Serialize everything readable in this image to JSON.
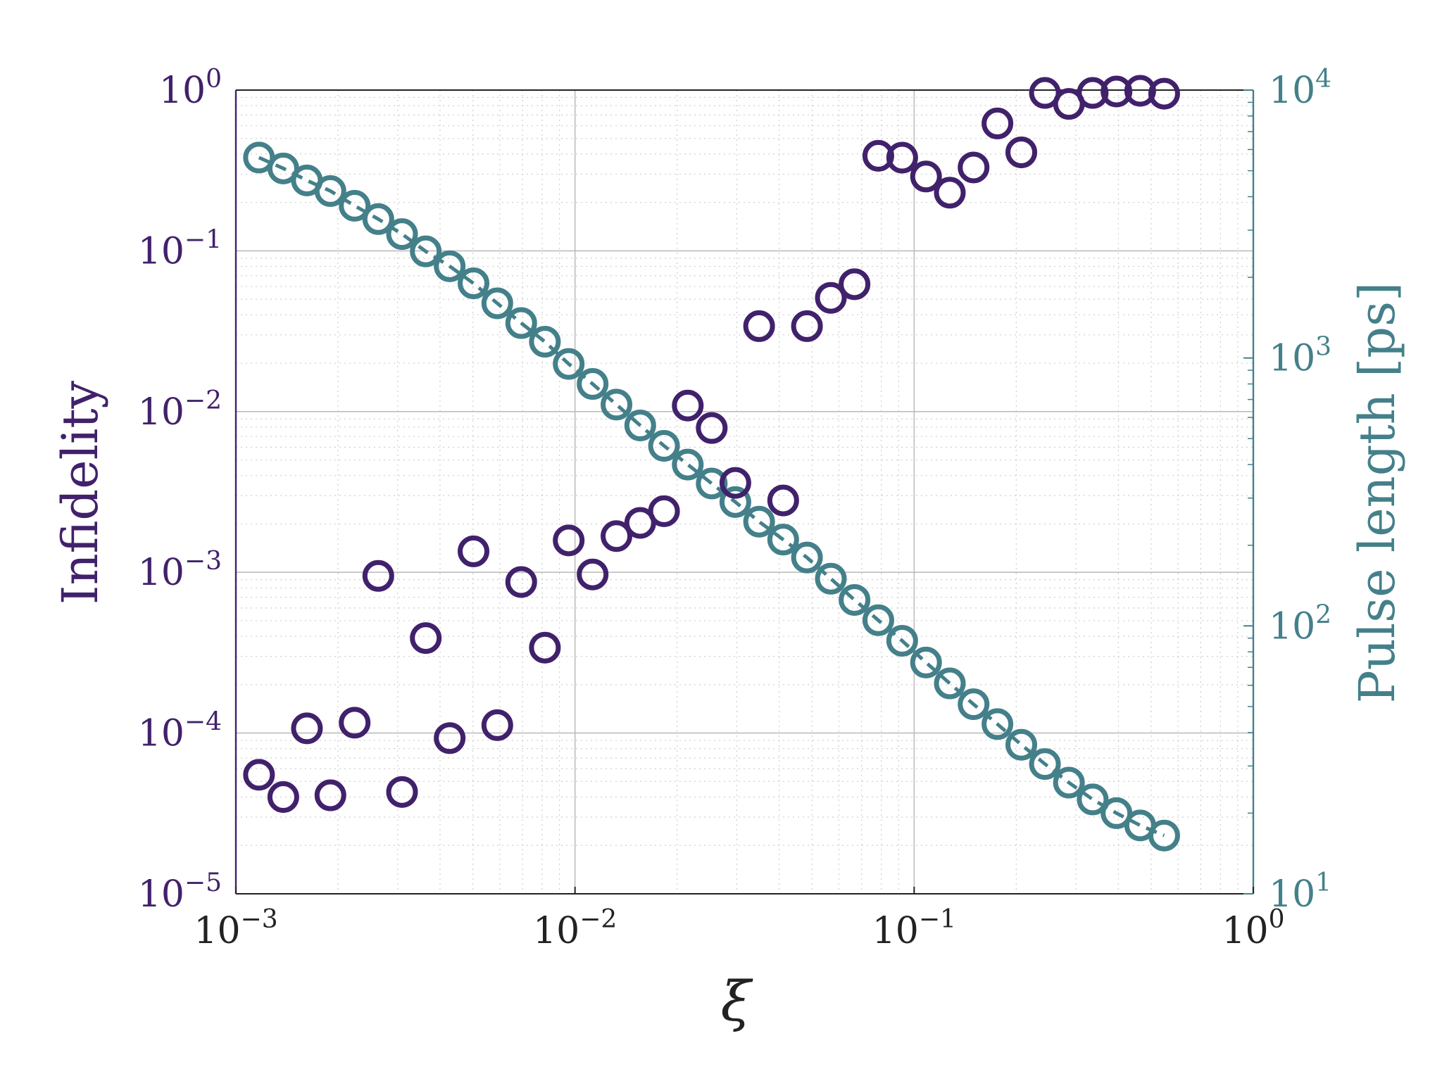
{
  "colors": {
    "left_series": "#41216b",
    "right_series": "#44808a",
    "grid": "#cfcfcf",
    "axis": "#222222"
  },
  "chart_data": {
    "type": "scatter",
    "title": "",
    "xlabel": "ξ",
    "ylabel_left": "Infidelity",
    "ylabel_right": "Pulse length [ps]",
    "xscale": "log",
    "yscale_left": "log",
    "yscale_right": "log",
    "xlim": [
      0.001,
      1
    ],
    "ylim_left": [
      1e-05,
      1
    ],
    "ylim_right": [
      10,
      10000
    ],
    "grid": true,
    "x_ticks": [
      {
        "value": 0.001,
        "base": "10",
        "exp": "−3"
      },
      {
        "value": 0.01,
        "base": "10",
        "exp": "−2"
      },
      {
        "value": 0.1,
        "base": "10",
        "exp": "−1"
      },
      {
        "value": 1,
        "base": "10",
        "exp": "0"
      }
    ],
    "y_left_ticks": [
      {
        "value": 1,
        "base": "10",
        "exp": "0"
      },
      {
        "value": 0.1,
        "base": "10",
        "exp": "−1"
      },
      {
        "value": 0.01,
        "base": "10",
        "exp": "−2"
      },
      {
        "value": 0.001,
        "base": "10",
        "exp": "−3"
      },
      {
        "value": 0.0001,
        "base": "10",
        "exp": "−4"
      },
      {
        "value": 1e-05,
        "base": "10",
        "exp": "−5"
      }
    ],
    "y_right_ticks": [
      {
        "value": 10000,
        "base": "10",
        "exp": "4"
      },
      {
        "value": 1000,
        "base": "10",
        "exp": "3"
      },
      {
        "value": 100,
        "base": "10",
        "exp": "2"
      },
      {
        "value": 10,
        "base": "10",
        "exp": "1"
      }
    ],
    "series": [
      {
        "axis": "left",
        "color": "#41216b",
        "marker": "open-circle",
        "points": [
          [
            0.00117,
            5.5e-05
          ],
          [
            0.00138,
            4e-05
          ],
          [
            0.00162,
            0.000107
          ],
          [
            0.0019,
            4.1e-05
          ],
          [
            0.00224,
            0.000116
          ],
          [
            0.00263,
            0.00095
          ],
          [
            0.00309,
            4.3e-05
          ],
          [
            0.00363,
            0.00039
          ],
          [
            0.00427,
            9.3e-05
          ],
          [
            0.00502,
            0.00135
          ],
          [
            0.0059,
            0.000112
          ],
          [
            0.00694,
            0.00087
          ],
          [
            0.00815,
            0.00034
          ],
          [
            0.00958,
            0.00158
          ],
          [
            0.01127,
            0.00097
          ],
          [
            0.01325,
            0.00168
          ],
          [
            0.01557,
            0.00203
          ],
          [
            0.0183,
            0.0024
          ],
          [
            0.0215,
            0.0109
          ],
          [
            0.0253,
            0.0079
          ],
          [
            0.0297,
            0.0036
          ],
          [
            0.0349,
            0.034
          ],
          [
            0.0411,
            0.0028
          ],
          [
            0.0483,
            0.034
          ],
          [
            0.0568,
            0.051
          ],
          [
            0.0667,
            0.062
          ],
          [
            0.0784,
            0.39
          ],
          [
            0.0922,
            0.38
          ],
          [
            0.1084,
            0.29
          ],
          [
            0.1274,
            0.23
          ],
          [
            0.1497,
            0.33
          ],
          [
            0.176,
            0.62
          ],
          [
            0.207,
            0.41
          ],
          [
            0.243,
            0.96
          ],
          [
            0.286,
            0.82
          ],
          [
            0.336,
            0.96
          ],
          [
            0.395,
            0.98
          ],
          [
            0.464,
            0.99
          ],
          [
            0.546,
            0.95
          ]
        ]
      },
      {
        "axis": "right",
        "color": "#44808a",
        "marker": "open-circle",
        "dashed_line": true,
        "points": [
          [
            0.00117,
            5600
          ],
          [
            0.00138,
            5100
          ],
          [
            0.00162,
            4600
          ],
          [
            0.0019,
            4200
          ],
          [
            0.00224,
            3700
          ],
          [
            0.00263,
            3300
          ],
          [
            0.00309,
            2900
          ],
          [
            0.00363,
            2500
          ],
          [
            0.00427,
            2200
          ],
          [
            0.00502,
            1900
          ],
          [
            0.0059,
            1600
          ],
          [
            0.00694,
            1350
          ],
          [
            0.00815,
            1150
          ],
          [
            0.00958,
            950
          ],
          [
            0.01127,
            800
          ],
          [
            0.01325,
            670
          ],
          [
            0.01557,
            560
          ],
          [
            0.0183,
            470
          ],
          [
            0.0215,
            400
          ],
          [
            0.0253,
            340
          ],
          [
            0.0297,
            290
          ],
          [
            0.0349,
            245
          ],
          [
            0.0411,
            210
          ],
          [
            0.0483,
            180
          ],
          [
            0.0568,
            150
          ],
          [
            0.0667,
            125
          ],
          [
            0.0784,
            105
          ],
          [
            0.0922,
            88
          ],
          [
            0.1084,
            73
          ],
          [
            0.1274,
            61
          ],
          [
            0.1497,
            51
          ],
          [
            0.176,
            43
          ],
          [
            0.207,
            36
          ],
          [
            0.243,
            30.5
          ],
          [
            0.286,
            26
          ],
          [
            0.336,
            22.5
          ],
          [
            0.395,
            20
          ],
          [
            0.464,
            18
          ],
          [
            0.546,
            16.5
          ]
        ]
      }
    ]
  }
}
